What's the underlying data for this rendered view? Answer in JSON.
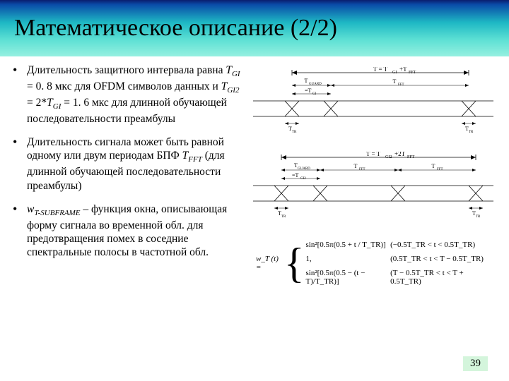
{
  "header": {
    "title": "Математическое описание (2/2)",
    "gradient_top": "#0a1e6e",
    "gradient_bottom": "#96f0e0"
  },
  "bullets": [
    {
      "html": "Длительность защитного интервала равна <span class='italic'>T<span class='sub'>GI</span></span> = 0. 8 мкс для OFDM символов данных и <span class='italic'>T<span class='sub'>GI2</span></span> = 2*<span class='italic'>T<span class='sub'>GI</span></span> = 1. 6 мкс для длинной обучающей последовательности преамбулы"
    },
    {
      "html": "Длительность сигнала может быть равной одному или двум периодам БПФ <span class='italic'>T<span class='sub'>FFT</span></span> (для длинной обучающей последовательности преамбулы)"
    },
    {
      "html": "<span class='italic'>w<span class='sub'>T-SUBFRAME</span></span> – функция окна, описывающая форму сигнала во временной обл. для предотвращения помех в соседние спектральные полосы в частотной обл."
    }
  ],
  "diagram1": {
    "label_top": "T = T_GI+T_FFT",
    "label_guard": "T_GUARD",
    "label_gi": "=T_GI",
    "label_fft": "T_FFT",
    "label_ttr": "T_TR"
  },
  "diagram2": {
    "label_top": "T = T_GI2+2T_FFT",
    "label_guard": "T_GUARD",
    "label_gi": "=T_GI2",
    "label_fft": "T_FFT",
    "label_ttr": "T_TR"
  },
  "formula": {
    "lhs": "w_T (t) =",
    "line1": "sin²[0.5π(0.5 + t / T_TR)]",
    "line2": "1,",
    "line3": "sin²[0.5π(0.5 − (t − T)/T_TR)]",
    "cond1": "(−0.5T_TR < t < 0.5T_TR)",
    "cond2": "(0.5T_TR < t < T − 0.5T_TR)",
    "cond3": "(T − 0.5T_TR < t < T + 0.5T_TR)"
  },
  "page_number": "39",
  "colors": {
    "text": "#000000",
    "bg": "#ffffff",
    "pagenum_bg": "#d4f5dc",
    "line": "#000000"
  }
}
